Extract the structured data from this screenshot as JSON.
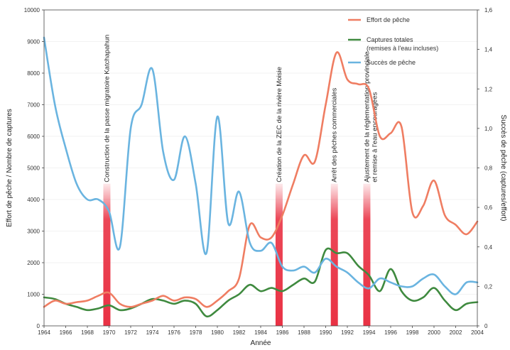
{
  "chart_data": {
    "type": "line",
    "xlabel": "Année",
    "ylabel_left": "Effort de pêche / Nombre de captures",
    "ylabel_right": "Succès de pêche (captures/effort)",
    "xlim": [
      1964,
      2004
    ],
    "ylim_left": [
      0,
      10000
    ],
    "ylim_right": [
      0,
      1.6
    ],
    "x_ticks": [
      1964,
      1966,
      1968,
      1970,
      1972,
      1974,
      1976,
      1978,
      1980,
      1982,
      1984,
      1986,
      1988,
      1990,
      1992,
      1994,
      1996,
      1998,
      2000,
      2002,
      2004
    ],
    "y_left_ticks": [
      0,
      1000,
      2000,
      3000,
      4000,
      5000,
      6000,
      7000,
      8000,
      9000,
      10000
    ],
    "y_right_ticks": [
      "0",
      "0,2",
      "0,4",
      "0,6",
      "0,8",
      "1,0",
      "1,2",
      "1,4",
      "1,6"
    ],
    "y_right_tick_values": [
      0,
      0.2,
      0.4,
      0.6,
      0.8,
      1.0,
      1.2,
      1.4,
      1.6
    ],
    "legend_position": "top-right",
    "series": [
      {
        "name": "Effort de pêche",
        "color": "#ef7d62",
        "axis": "left",
        "points": [
          [
            1964,
            600
          ],
          [
            1965,
            800
          ],
          [
            1966,
            700
          ],
          [
            1967,
            750
          ],
          [
            1968,
            800
          ],
          [
            1969,
            950
          ],
          [
            1970,
            1050
          ],
          [
            1971,
            700
          ],
          [
            1972,
            600
          ],
          [
            1973,
            700
          ],
          [
            1974,
            800
          ],
          [
            1975,
            950
          ],
          [
            1976,
            800
          ],
          [
            1977,
            900
          ],
          [
            1978,
            850
          ],
          [
            1979,
            600
          ],
          [
            1980,
            800
          ],
          [
            1981,
            1100
          ],
          [
            1982,
            1500
          ],
          [
            1983,
            3200
          ],
          [
            1984,
            2800
          ],
          [
            1985,
            2800
          ],
          [
            1986,
            3500
          ],
          [
            1987,
            4500
          ],
          [
            1988,
            5400
          ],
          [
            1989,
            5200
          ],
          [
            1990,
            7000
          ],
          [
            1991,
            8650
          ],
          [
            1992,
            7800
          ],
          [
            1993,
            7650
          ],
          [
            1994,
            7500
          ],
          [
            1995,
            6000
          ],
          [
            1996,
            6100
          ],
          [
            1997,
            6300
          ],
          [
            1998,
            3600
          ],
          [
            1999,
            3800
          ],
          [
            2000,
            4600
          ],
          [
            2001,
            3500
          ],
          [
            2002,
            3200
          ],
          [
            2003,
            2900
          ],
          [
            2004,
            3300
          ]
        ]
      },
      {
        "name": "Captures totales (remises à l'eau incluses)",
        "legend_lines": [
          "Captures totales",
          "(remises à l'eau incluses)"
        ],
        "color": "#3f8a3f",
        "axis": "left",
        "points": [
          [
            1964,
            900
          ],
          [
            1965,
            850
          ],
          [
            1966,
            700
          ],
          [
            1967,
            600
          ],
          [
            1968,
            500
          ],
          [
            1969,
            550
          ],
          [
            1970,
            650
          ],
          [
            1971,
            500
          ],
          [
            1972,
            550
          ],
          [
            1973,
            700
          ],
          [
            1974,
            850
          ],
          [
            1975,
            800
          ],
          [
            1976,
            700
          ],
          [
            1977,
            800
          ],
          [
            1978,
            700
          ],
          [
            1979,
            300
          ],
          [
            1980,
            500
          ],
          [
            1981,
            800
          ],
          [
            1982,
            1000
          ],
          [
            1983,
            1300
          ],
          [
            1984,
            1100
          ],
          [
            1985,
            1200
          ],
          [
            1986,
            1100
          ],
          [
            1987,
            1300
          ],
          [
            1988,
            1500
          ],
          [
            1989,
            1400
          ],
          [
            1990,
            2400
          ],
          [
            1991,
            2300
          ],
          [
            1992,
            2300
          ],
          [
            1993,
            1900
          ],
          [
            1994,
            1600
          ],
          [
            1995,
            1100
          ],
          [
            1996,
            1800
          ],
          [
            1997,
            1100
          ],
          [
            1998,
            800
          ],
          [
            1999,
            900
          ],
          [
            2000,
            1200
          ],
          [
            2001,
            800
          ],
          [
            2002,
            500
          ],
          [
            2003,
            700
          ],
          [
            2004,
            750
          ]
        ]
      },
      {
        "name": "Succès de pêche",
        "color": "#6ab4e0",
        "axis": "right",
        "points": [
          [
            1964,
            1.46
          ],
          [
            1965,
            1.12
          ],
          [
            1966,
            0.9
          ],
          [
            1967,
            0.72
          ],
          [
            1968,
            0.64
          ],
          [
            1969,
            0.64
          ],
          [
            1970,
            0.58
          ],
          [
            1971,
            0.4
          ],
          [
            1972,
            1.0
          ],
          [
            1973,
            1.12
          ],
          [
            1974,
            1.3
          ],
          [
            1975,
            0.88
          ],
          [
            1976,
            0.74
          ],
          [
            1977,
            0.96
          ],
          [
            1978,
            0.72
          ],
          [
            1979,
            0.37
          ],
          [
            1980,
            1.06
          ],
          [
            1981,
            0.52
          ],
          [
            1982,
            0.68
          ],
          [
            1983,
            0.42
          ],
          [
            1984,
            0.38
          ],
          [
            1985,
            0.42
          ],
          [
            1986,
            0.3
          ],
          [
            1987,
            0.28
          ],
          [
            1988,
            0.3
          ],
          [
            1989,
            0.27
          ],
          [
            1990,
            0.34
          ],
          [
            1991,
            0.3
          ],
          [
            1992,
            0.27
          ],
          [
            1993,
            0.22
          ],
          [
            1994,
            0.19
          ],
          [
            1995,
            0.24
          ],
          [
            1996,
            0.22
          ],
          [
            1997,
            0.2
          ],
          [
            1998,
            0.2
          ],
          [
            1999,
            0.24
          ],
          [
            2000,
            0.26
          ],
          [
            2001,
            0.2
          ],
          [
            2002,
            0.16
          ],
          [
            2003,
            0.22
          ],
          [
            2004,
            0.22
          ]
        ]
      }
    ],
    "events": [
      {
        "year": 1969.8,
        "label": "Construction de la passe migratoire Katchapahun"
      },
      {
        "year": 1985.7,
        "label": "Création de la ZEC de la rivière Moisie"
      },
      {
        "year": 1990.8,
        "label": "Arrêt des pêches commerciales"
      },
      {
        "year": 1993.8,
        "label": "Ajustement de la réglementation provinciale",
        "label2": "et remise à l'eau encouragées"
      }
    ]
  }
}
